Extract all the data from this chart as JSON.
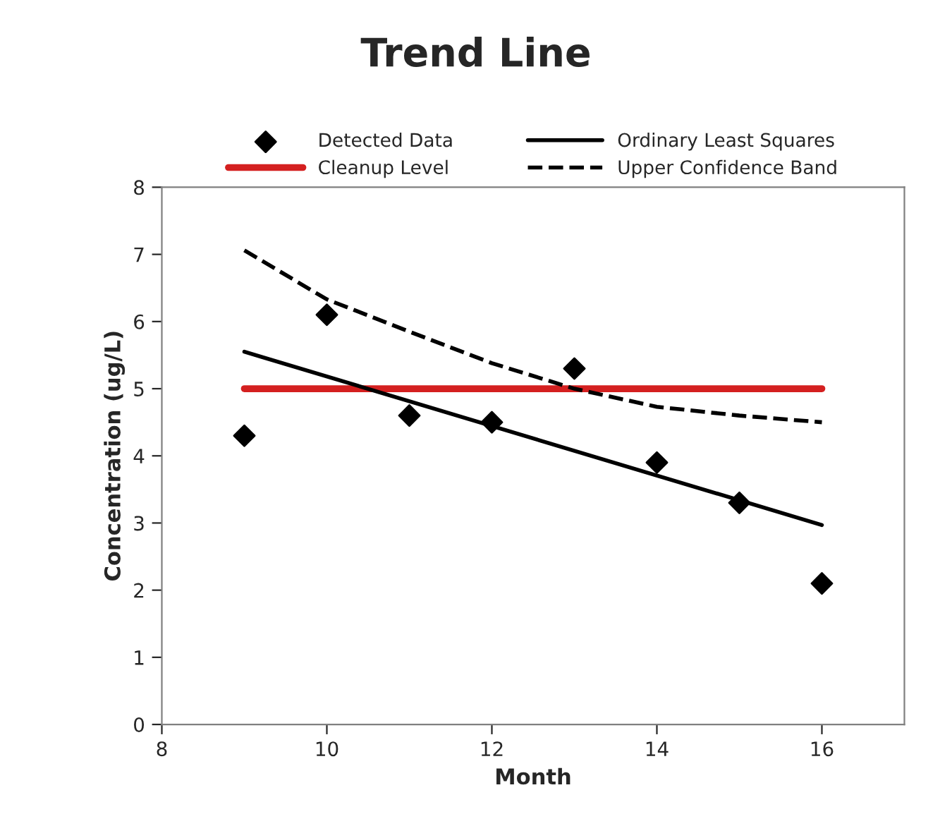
{
  "chart_data": {
    "type": "line",
    "title": "Trend Line",
    "xlabel": "Month",
    "ylabel": "Concentration (ug/L)",
    "xlim": [
      8,
      17
    ],
    "xticks": [
      8,
      10,
      12,
      14,
      16
    ],
    "ylim": [
      0,
      8
    ],
    "yticks": [
      0,
      1,
      2,
      3,
      4,
      5,
      6,
      7,
      8
    ],
    "grid": false,
    "legend": "top",
    "series": [
      {
        "name": "Detected Data",
        "type": "scatter",
        "marker": "diamond",
        "color": "#000000",
        "x": [
          9,
          10,
          11,
          12,
          13,
          14,
          15,
          16
        ],
        "values": [
          4.3,
          6.1,
          4.6,
          4.5,
          5.3,
          3.9,
          3.3,
          2.1
        ]
      },
      {
        "name": "Cleanup Level",
        "line_style": "solid",
        "color": "#d42020",
        "x": [
          9,
          16
        ],
        "values": [
          5,
          5
        ]
      },
      {
        "name": "Ordinary Least Squares",
        "line_style": "solid",
        "color": "#000000",
        "x": [
          9,
          16
        ],
        "values": [
          5.55,
          2.97
        ]
      },
      {
        "name": "Upper Confidence Band",
        "line_style": "dashed",
        "color": "#000000",
        "x": [
          9,
          10,
          11,
          12,
          13,
          14,
          15,
          16
        ],
        "values": [
          7.06,
          6.33,
          5.85,
          5.38,
          5.0,
          4.73,
          4.6,
          4.5
        ]
      }
    ]
  }
}
